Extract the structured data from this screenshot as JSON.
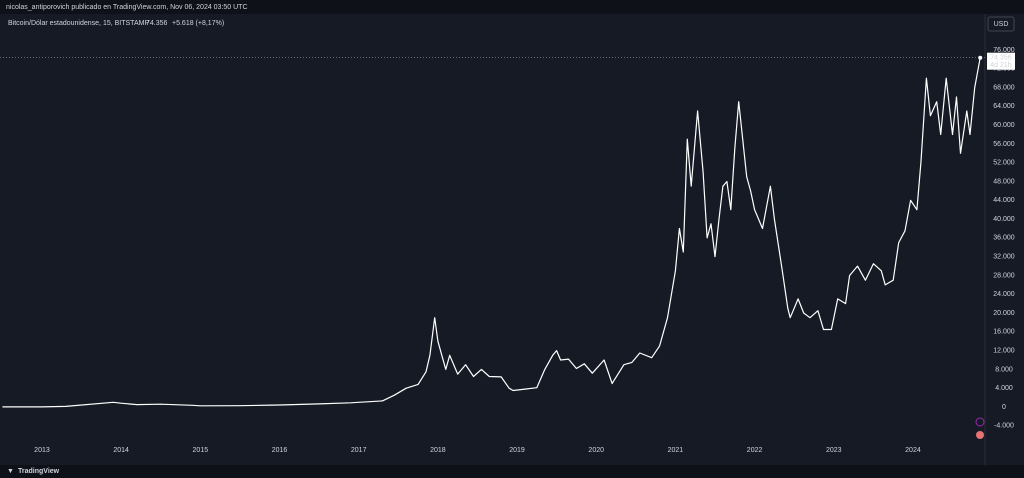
{
  "header": {
    "publisher": "nicolas_antiporovich publicado en TradingView.com, Nov 06, 2024 03:50 UTC",
    "symbol": "Bitcoin/Dólar estadounidense, 15, BITSTAMP",
    "last": "74.356",
    "change": "+5.618 (+8,17%)",
    "currency": "USD",
    "price_tag": "74.356",
    "countdown": "4d 21h",
    "brand": "TradingView"
  },
  "chart_data": {
    "type": "line",
    "color": "#ffffff",
    "grid": false,
    "xlim": [
      2012.47,
      2024.91
    ],
    "xticks": [
      2013,
      2014,
      2015,
      2016,
      2017,
      2018,
      2019,
      2020,
      2021,
      2022,
      2023,
      2024
    ],
    "ylim": [
      -10860,
      83660
    ],
    "yticks": [
      {
        "value": -4000,
        "label": "-4.000"
      },
      0,
      {
        "value": 4000,
        "label": "4.000"
      },
      {
        "value": 8000,
        "label": "8.000"
      },
      {
        "value": 12000,
        "label": "12.000"
      },
      {
        "value": 16000,
        "label": "16.000"
      },
      {
        "value": 20000,
        "label": "20.000"
      },
      {
        "value": 24000,
        "label": "24.000"
      },
      {
        "value": 28000,
        "label": "28.000"
      },
      {
        "value": 32000,
        "label": "32.000"
      },
      {
        "value": 36000,
        "label": "36.000"
      },
      {
        "value": 40000,
        "label": "40.000"
      },
      {
        "value": 44000,
        "label": "44.000"
      },
      {
        "value": 48000,
        "label": "48.000"
      },
      {
        "value": 52000,
        "label": "52.000"
      },
      {
        "value": 56000,
        "label": "56.000"
      },
      {
        "value": 60000,
        "label": "60.000"
      },
      {
        "value": 64000,
        "label": "64.000"
      },
      {
        "value": 68000,
        "label": "68.000"
      },
      {
        "value": 72000,
        "label": "72.000"
      },
      {
        "value": 76000,
        "label": "76.000"
      }
    ],
    "x": [
      2012.5,
      2013.0,
      2013.3,
      2013.9,
      2014.0,
      2014.2,
      2014.5,
      2014.9,
      2015.0,
      2015.5,
      2015.9,
      2016.0,
      2016.5,
      2016.9,
      2017.0,
      2017.3,
      2017.45,
      2017.6,
      2017.75,
      2017.85,
      2017.9,
      2017.96,
      2018.0,
      2018.05,
      2018.1,
      2018.15,
      2018.25,
      2018.35,
      2018.45,
      2018.55,
      2018.65,
      2018.8,
      2018.9,
      2018.95,
      2019.1,
      2019.25,
      2019.35,
      2019.45,
      2019.5,
      2019.55,
      2019.65,
      2019.75,
      2019.85,
      2019.95,
      2020.1,
      2020.2,
      2020.35,
      2020.45,
      2020.55,
      2020.7,
      2020.8,
      2020.9,
      2021.0,
      2021.05,
      2021.1,
      2021.15,
      2021.2,
      2021.28,
      2021.35,
      2021.4,
      2021.45,
      2021.5,
      2021.55,
      2021.6,
      2021.65,
      2021.7,
      2021.75,
      2021.8,
      2021.85,
      2021.9,
      2021.95,
      2022.0,
      2022.1,
      2022.2,
      2022.25,
      2022.35,
      2022.42,
      2022.45,
      2022.55,
      2022.62,
      2022.7,
      2022.8,
      2022.87,
      2022.97,
      2023.05,
      2023.15,
      2023.2,
      2023.3,
      2023.4,
      2023.5,
      2023.6,
      2023.65,
      2023.75,
      2023.82,
      2023.9,
      2023.97,
      2024.05,
      2024.1,
      2024.17,
      2024.22,
      2024.3,
      2024.35,
      2024.42,
      2024.5,
      2024.55,
      2024.6,
      2024.68,
      2024.72,
      2024.78,
      2024.85
    ],
    "values": [
      10,
      13,
      130,
      1000,
      800,
      500,
      600,
      350,
      250,
      270,
      400,
      430,
      650,
      900,
      1000,
      1300,
      2500,
      4000,
      4800,
      7500,
      11000,
      19000,
      14000,
      11000,
      8000,
      11000,
      7000,
      9000,
      6500,
      8000,
      6500,
      6400,
      4000,
      3500,
      3800,
      4100,
      8000,
      11000,
      12000,
      10000,
      10200,
      8200,
      9200,
      7200,
      10000,
      5000,
      9000,
      9500,
      11500,
      10500,
      13000,
      19000,
      29000,
      38000,
      33000,
      57000,
      47000,
      63000,
      50000,
      36000,
      39000,
      32000,
      40000,
      47000,
      48000,
      42000,
      55000,
      65000,
      57000,
      49000,
      46000,
      42000,
      38000,
      47000,
      40000,
      29000,
      21000,
      19000,
      23000,
      20000,
      19000,
      20500,
      16500,
      16500,
      23000,
      22000,
      28000,
      30000,
      27000,
      30500,
      29000,
      26000,
      27000,
      35000,
      37500,
      44000,
      42000,
      52000,
      70000,
      62000,
      65000,
      58000,
      70000,
      58000,
      66000,
      54000,
      63000,
      58000,
      68000,
      74356
    ]
  }
}
